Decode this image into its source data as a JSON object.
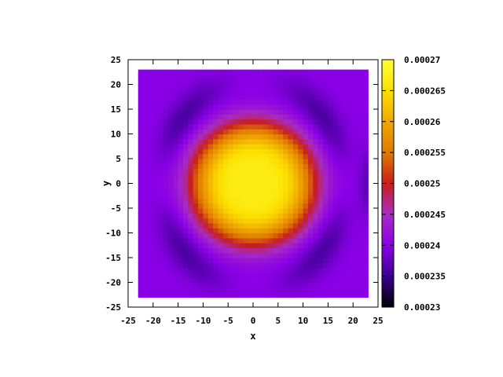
{
  "chart_data": {
    "type": "heatmap",
    "title": "",
    "xlabel": "x",
    "ylabel": "y",
    "xlim": [
      -25,
      25
    ],
    "ylim": [
      -25,
      25
    ],
    "data_extent": [
      -23,
      23
    ],
    "xticks": [
      -25,
      -20,
      -15,
      -10,
      -5,
      0,
      5,
      10,
      15,
      20,
      25
    ],
    "yticks": [
      -25,
      -20,
      -15,
      -10,
      -5,
      0,
      5,
      10,
      15,
      20,
      25
    ],
    "grid": false,
    "colorbar": {
      "min": 0.00023,
      "max": 0.00027,
      "ticks": [
        "0.00023",
        "0.000235",
        "0.00024",
        "0.000245",
        "0.00025",
        "0.000255",
        "0.00026",
        "0.000265",
        "0.00027"
      ],
      "palette": [
        "#000000",
        "#3b0090",
        "#8a00e6",
        "#a82cc2",
        "#c71e1e",
        "#e07a00",
        "#f0a800",
        "#fbe000",
        "#ffff33"
      ]
    },
    "peak_value": 0.000267,
    "peak_location": [
      0,
      0
    ],
    "background_value": 0.00024,
    "minimum_value": 0.000235
  }
}
